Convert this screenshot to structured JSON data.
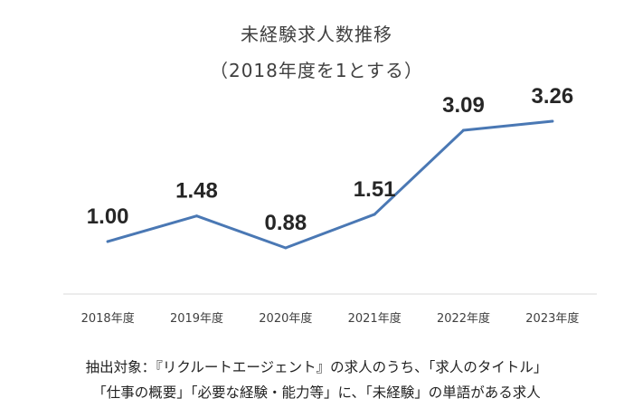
{
  "chart_data": {
    "type": "line",
    "title": "未経験求人数推移",
    "subtitle": "（2018年度を1とする）",
    "categories": [
      "2018年度",
      "2019年度",
      "2020年度",
      "2021年度",
      "2022年度",
      "2023年度"
    ],
    "series": [
      {
        "values": [
          1.0,
          1.48,
          0.88,
          1.51,
          3.09,
          3.26
        ],
        "data_labels": [
          "1.00",
          "1.48",
          "0.88",
          "1.51",
          "3.09",
          "3.26"
        ],
        "color": "#4a78b4"
      }
    ],
    "xlabel": "",
    "ylabel": "",
    "grid": false,
    "legend": "none"
  },
  "note": {
    "line1": "抽出対象：『リクルートエージェント』の求人のうち、「求人のタイトル」",
    "line2": "「仕事の概要」「必要な経験・能力等」に、「未経験」の単語がある求人"
  },
  "colors": {
    "line": "#4a78b4",
    "axis": "#d9d9d9",
    "label": "#262626",
    "tick": "#404040"
  }
}
